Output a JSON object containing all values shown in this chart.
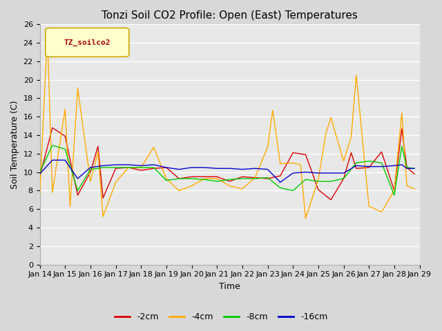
{
  "title": "Tonzi Soil CO2 Profile: Open (East) Temperatures",
  "xlabel": "Time",
  "ylabel": "Soil Temperature (C)",
  "ylim": [
    0,
    26
  ],
  "yticks": [
    0,
    2,
    4,
    6,
    8,
    10,
    12,
    14,
    16,
    18,
    20,
    22,
    24,
    26
  ],
  "xtick_labels": [
    "Jan 14",
    "Jan 15",
    "Jan 16",
    "Jan 17",
    "Jan 18",
    "Jan 19",
    "Jan 20",
    "Jan 21",
    "Jan 22",
    "Jan 23",
    "Jan 24",
    "Jan 25",
    "Jan 26",
    "Jan 27",
    "Jan 28",
    "Jan 29"
  ],
  "legend_label": "TZ_soilco2",
  "legend_text_color": "#aa0000",
  "legend_box_facecolor": "#ffffcc",
  "legend_box_edgecolor": "#ccaa00",
  "series": {
    "-2cm": {
      "color": "#dd0000",
      "x": [
        0,
        0.5,
        1.0,
        1.5,
        2.0,
        2.3,
        2.5,
        3.0,
        3.5,
        4.0,
        4.5,
        5.0,
        5.5,
        6.0,
        6.5,
        7.0,
        7.5,
        8.0,
        8.5,
        9.0,
        9.5,
        10.0,
        10.5,
        11.0,
        11.5,
        12.0,
        12.3,
        12.5,
        13.0,
        13.5,
        14.0,
        14.3,
        14.5,
        14.8
      ],
      "y": [
        9.5,
        14.8,
        13.9,
        7.5,
        10.0,
        12.8,
        7.2,
        10.4,
        10.5,
        10.2,
        10.4,
        10.5,
        9.3,
        9.5,
        9.5,
        9.5,
        9.0,
        9.5,
        9.4,
        9.3,
        9.6,
        12.1,
        11.9,
        8.1,
        7.0,
        9.3,
        12.1,
        10.4,
        10.5,
        12.2,
        8.0,
        14.7,
        10.5,
        9.8
      ]
    },
    "-4cm": {
      "color": "#ffaa00",
      "x": [
        0,
        0.3,
        0.5,
        1.0,
        1.2,
        1.5,
        2.0,
        2.3,
        2.5,
        3.0,
        3.5,
        4.0,
        4.5,
        5.0,
        5.5,
        6.0,
        6.5,
        7.0,
        7.5,
        8.0,
        8.5,
        9.0,
        9.2,
        9.5,
        10.0,
        10.3,
        10.5,
        11.0,
        11.3,
        11.5,
        12.0,
        12.3,
        12.5,
        13.0,
        13.5,
        14.0,
        14.3,
        14.5,
        14.8
      ],
      "y": [
        7.5,
        25.0,
        7.8,
        16.8,
        6.3,
        19.1,
        9.0,
        12.2,
        5.2,
        8.9,
        10.5,
        10.5,
        12.7,
        9.3,
        8.0,
        8.5,
        9.3,
        9.3,
        8.5,
        8.2,
        9.4,
        12.7,
        16.7,
        10.9,
        11.0,
        10.8,
        5.0,
        9.2,
        14.2,
        15.9,
        11.2,
        13.8,
        20.5,
        6.3,
        5.7,
        8.0,
        16.4,
        8.5,
        8.2
      ]
    },
    "-8cm": {
      "color": "#00cc00",
      "x": [
        0,
        0.5,
        1.0,
        1.5,
        2.0,
        2.5,
        3.0,
        3.5,
        4.0,
        4.5,
        5.0,
        5.5,
        6.0,
        6.5,
        7.0,
        7.5,
        8.0,
        8.5,
        9.0,
        9.5,
        10.0,
        10.5,
        11.0,
        11.5,
        12.0,
        12.5,
        13.0,
        13.5,
        14.0,
        14.3,
        14.5,
        14.8
      ],
      "y": [
        10.0,
        12.9,
        12.5,
        8.0,
        10.3,
        10.5,
        10.5,
        10.5,
        10.5,
        10.5,
        9.1,
        9.3,
        9.3,
        9.2,
        9.0,
        9.2,
        9.3,
        9.3,
        9.4,
        8.3,
        8.0,
        9.2,
        9.0,
        9.0,
        9.3,
        11.0,
        11.2,
        11.0,
        7.5,
        12.8,
        10.5,
        10.4
      ]
    },
    "-16cm": {
      "color": "#0000cc",
      "x": [
        0,
        0.5,
        1.0,
        1.5,
        2.0,
        2.5,
        3.0,
        3.5,
        4.0,
        4.5,
        5.0,
        5.5,
        6.0,
        6.5,
        7.0,
        7.5,
        8.0,
        8.5,
        9.0,
        9.5,
        10.0,
        10.5,
        11.0,
        11.5,
        12.0,
        12.5,
        13.0,
        13.5,
        14.0,
        14.3,
        14.5,
        14.8
      ],
      "y": [
        9.8,
        11.3,
        11.3,
        9.3,
        10.5,
        10.7,
        10.8,
        10.8,
        10.7,
        10.8,
        10.5,
        10.3,
        10.5,
        10.5,
        10.4,
        10.4,
        10.3,
        10.4,
        10.3,
        8.9,
        9.9,
        10.0,
        9.9,
        9.9,
        9.9,
        10.7,
        10.6,
        10.6,
        10.7,
        10.8,
        10.4,
        10.4
      ]
    }
  },
  "fig_facecolor": "#d8d8d8",
  "plot_facecolor": "#e8e8e8",
  "grid_color": "#ffffff",
  "title_fontsize": 11,
  "axis_label_fontsize": 9,
  "tick_fontsize": 8,
  "series_order": [
    "-2cm",
    "-4cm",
    "-8cm",
    "-16cm"
  ]
}
